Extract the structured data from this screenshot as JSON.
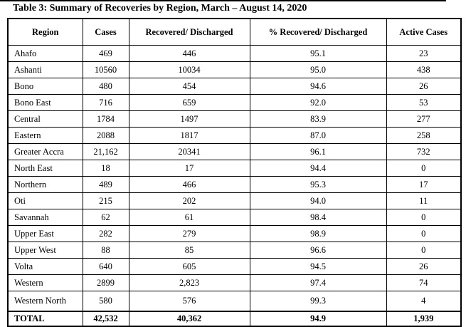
{
  "title": "Table 3: Summary of Recoveries by Region, March – August 14, 2020",
  "table": {
    "columns": [
      "Region",
      "Cases",
      "Recovered/ Discharged",
      "% Recovered/ Discharged",
      "Active Cases"
    ],
    "rows": [
      {
        "region": "Ahafo",
        "cases": "469",
        "recovered": "446",
        "pct": "95.1",
        "active": "23"
      },
      {
        "region": "Ashanti",
        "cases": "10560",
        "recovered": "10034",
        "pct": "95.0",
        "active": "438"
      },
      {
        "region": "Bono",
        "cases": "480",
        "recovered": "454",
        "pct": "94.6",
        "active": "26"
      },
      {
        "region": "Bono East",
        "cases": "716",
        "recovered": "659",
        "pct": "92.0",
        "active": "53"
      },
      {
        "region": "Central",
        "cases": "1784",
        "recovered": "1497",
        "pct": "83.9",
        "active": "277"
      },
      {
        "region": "Eastern",
        "cases": "2088",
        "recovered": "1817",
        "pct": "87.0",
        "active": "258"
      },
      {
        "region": "Greater Accra",
        "cases": "21,162",
        "recovered": "20341",
        "pct": "96.1",
        "active": "732"
      },
      {
        "region": "North East",
        "cases": "18",
        "recovered": "17",
        "pct": "94.4",
        "active": "0"
      },
      {
        "region": "Northern",
        "cases": "489",
        "recovered": "466",
        "pct": "95.3",
        "active": "17"
      },
      {
        "region": "Oti",
        "cases": "215",
        "recovered": "202",
        "pct": "94.0",
        "active": "11"
      },
      {
        "region": "Savannah",
        "cases": "62",
        "recovered": "61",
        "pct": "98.4",
        "active": "0"
      },
      {
        "region": "Upper East",
        "cases": "282",
        "recovered": "279",
        "pct": "98.9",
        "active": "0"
      },
      {
        "region": "Upper West",
        "cases": "88",
        "recovered": "85",
        "pct": "96.6",
        "active": "0"
      },
      {
        "region": "Volta",
        "cases": "640",
        "recovered": "605",
        "pct": "94.5",
        "active": "26"
      },
      {
        "region": "Western",
        "cases": "2899",
        "recovered": "2,823",
        "pct": "97.4",
        "active": "74"
      },
      {
        "region": "Western North",
        "cases": "580",
        "recovered": "576",
        "pct": "99.3",
        "active": "4"
      }
    ],
    "total": {
      "region": "TOTAL",
      "cases": "42,532",
      "recovered": "40,362",
      "pct": "94.9",
      "active": "1,939"
    }
  }
}
